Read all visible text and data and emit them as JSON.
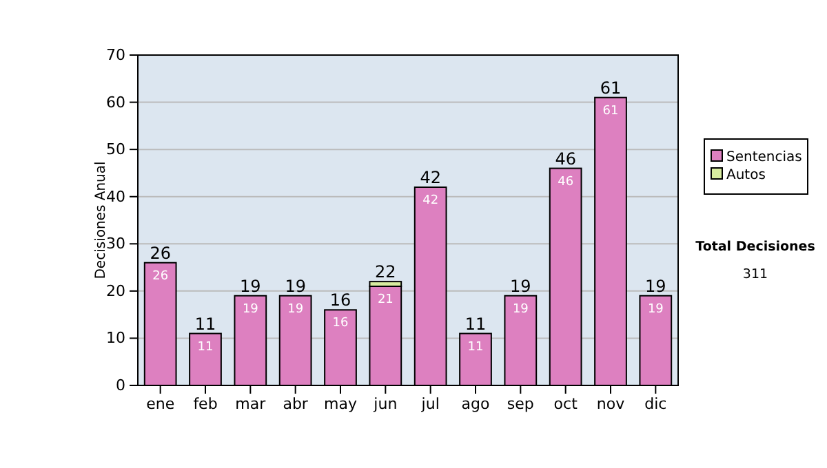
{
  "chart_data": {
    "type": "bar",
    "stacked": true,
    "ylabel": "Decisiones Anual",
    "categories": [
      "ene",
      "feb",
      "mar",
      "abr",
      "may",
      "jun",
      "jul",
      "ago",
      "sep",
      "oct",
      "nov",
      "dic"
    ],
    "series": [
      {
        "name": "Sentencias",
        "color": "#dd80c0",
        "values": [
          26,
          11,
          19,
          19,
          16,
          21,
          42,
          11,
          19,
          46,
          61,
          19
        ],
        "value_labels": [
          "26",
          "11",
          "19",
          "19",
          "16",
          "21",
          "42",
          "11",
          "19",
          "46",
          "61",
          "19"
        ]
      },
      {
        "name": "Autos",
        "color": "#d8eca0",
        "values": [
          0,
          0,
          0,
          0,
          0,
          1,
          0,
          0,
          0,
          0,
          0,
          0
        ]
      }
    ],
    "totals": [
      "26",
      "11",
      "19",
      "19",
      "16",
      "22",
      "42",
      "11",
      "19",
      "46",
      "61",
      "19"
    ],
    "ylim": [
      0,
      70
    ],
    "yticks": [
      0,
      10,
      20,
      30,
      40,
      50,
      60,
      70
    ],
    "grid": "y",
    "legend": "right",
    "annotations": [
      "Total Decisiones",
      "311"
    ]
  }
}
